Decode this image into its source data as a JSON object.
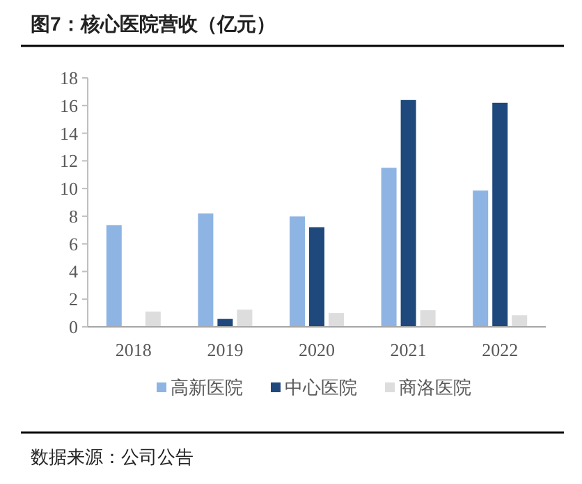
{
  "chart_data": {
    "type": "bar",
    "title": "图7：核心医院营收（亿元）",
    "categories": [
      "2018",
      "2019",
      "2020",
      "2021",
      "2022"
    ],
    "series": [
      {
        "name": "高新医院",
        "color": "#8eb4e3",
        "values": [
          7.35,
          8.2,
          7.98,
          11.5,
          9.86
        ]
      },
      {
        "name": "中心医院",
        "color": "#1f497d",
        "values": [
          null,
          0.57,
          7.2,
          16.4,
          16.2
        ]
      },
      {
        "name": "商洛医院",
        "color": "#dddddd",
        "values": [
          1.1,
          1.24,
          1.0,
          1.2,
          0.84
        ]
      }
    ],
    "ylim": [
      0,
      18
    ],
    "yticks": [
      0,
      2,
      4,
      6,
      8,
      10,
      12,
      14,
      16,
      18
    ],
    "legend": "bottom",
    "annotations": [
      "数据来源：公司公告"
    ]
  }
}
